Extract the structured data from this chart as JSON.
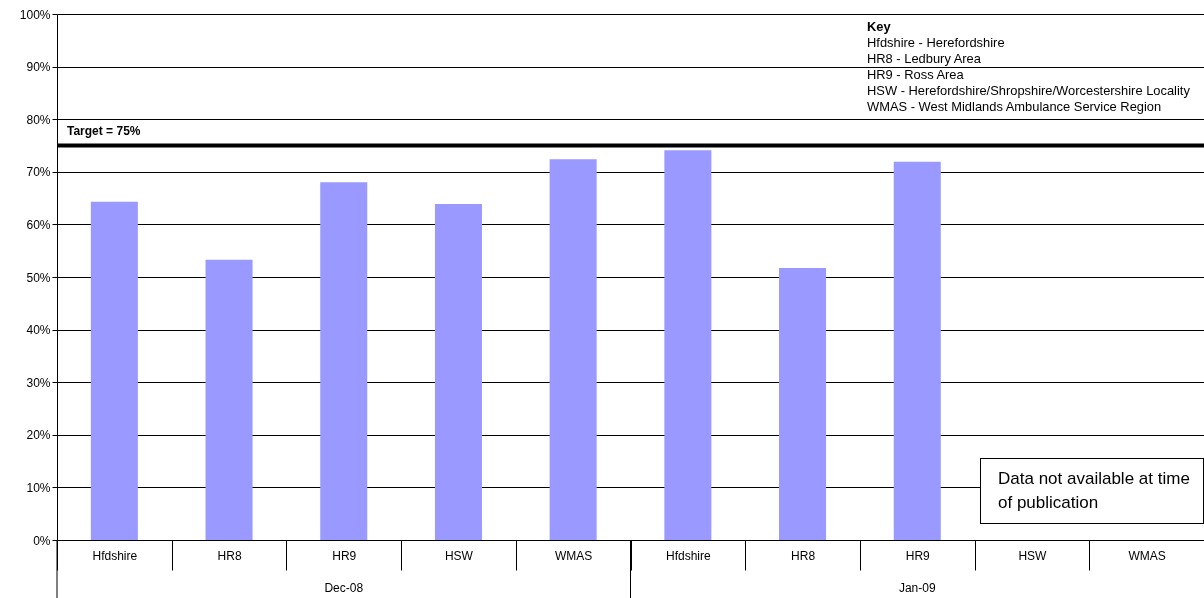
{
  "chart_data": {
    "type": "bar",
    "categories": [
      "Hfdshire",
      "HR8",
      "HR9",
      "HSW",
      "WMAS",
      "Hfdshire",
      "HR8",
      "HR9",
      "HSW",
      "WMAS"
    ],
    "values": [
      64.3,
      53.3,
      68.0,
      63.9,
      72.4,
      74.1,
      51.7,
      71.9,
      null,
      null
    ],
    "color": "#9999ff",
    "ylim": [
      0,
      100
    ],
    "yticks": [
      {
        "value": 0,
        "label": "0%"
      },
      {
        "value": 10,
        "label": "10%"
      },
      {
        "value": 20,
        "label": "20%"
      },
      {
        "value": 30,
        "label": "30%"
      },
      {
        "value": 40,
        "label": "40%"
      },
      {
        "value": 50,
        "label": "50%"
      },
      {
        "value": 60,
        "label": "60%"
      },
      {
        "value": 70,
        "label": "70%"
      },
      {
        "value": 80,
        "label": "80%"
      },
      {
        "value": 90,
        "label": "90%"
      },
      {
        "value": 100,
        "label": "100%"
      }
    ],
    "grid": "y",
    "ref_lines": [
      {
        "axis": "y",
        "value": 75,
        "label": "Target = 75%",
        "color": "#000000"
      }
    ],
    "annotations": [
      "Dec-08",
      "Jan-09",
      "Key",
      "Hfdshire - Herefordshire",
      "HR8 - Ledbury Area",
      "HR9 - Ross Area",
      "HSW - Herefordshire/Shropshire/Worcestershire Locality",
      "WMAS - West Midlands Ambulance Service Region",
      "Data not available at time of publication"
    ]
  }
}
